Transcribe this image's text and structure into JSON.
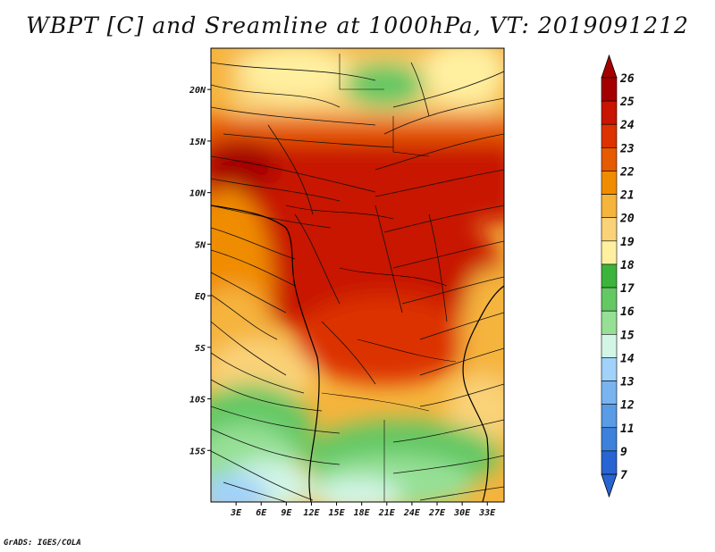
{
  "title": "WBPT [C] and Sreamline at 1000hPa, VT: 2019091212",
  "credit": "GrADS: IGES/COLA",
  "map": {
    "variable": "Wet-bulb potential temperature",
    "units": "C",
    "level": "1000hPa",
    "valid_time": "2019091212",
    "lon_range": [
      0,
      35
    ],
    "lat_range": [
      -20,
      24
    ],
    "x_ticks": [
      "3E",
      "6E",
      "9E",
      "12E",
      "15E",
      "18E",
      "21E",
      "24E",
      "27E",
      "30E",
      "33E"
    ],
    "y_ticks": [
      "20N",
      "15N",
      "10N",
      "5N",
      "EQ",
      "5S",
      "10S",
      "15S"
    ]
  },
  "colorbar": {
    "labels": [
      "26",
      "25",
      "24",
      "23",
      "22",
      "21",
      "20",
      "19",
      "18",
      "17",
      "16",
      "15",
      "14",
      "13",
      "12",
      "11",
      "9",
      "7"
    ],
    "colors": [
      "#a50000",
      "#c81400",
      "#dc3200",
      "#e65a00",
      "#f08c00",
      "#f5b43c",
      "#fad278",
      "#fff0a0",
      "#3cb43c",
      "#64c864",
      "#96e096",
      "#d2f5e6",
      "#a0d2fa",
      "#78b4f0",
      "#5a9be6",
      "#3c82dc",
      "#2864d2"
    ],
    "arrow_top": "#a50000",
    "arrow_bottom": "#2864d2"
  }
}
